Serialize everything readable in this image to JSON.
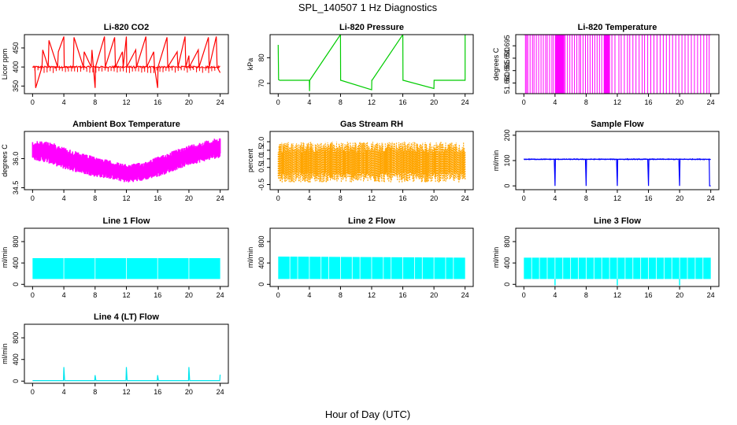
{
  "figure": {
    "title": "SPL_140507  1 Hz Diagnostics",
    "xlabel": "Hour of Day (UTC)"
  },
  "chart_data": [
    {
      "type": "line",
      "title": "Li-820 CO2",
      "xlabel": "",
      "ylabel": "Licor ppm",
      "color": "#ff0000",
      "xlim": [
        0,
        24
      ],
      "xticks": [
        0,
        4,
        8,
        12,
        16,
        20,
        24
      ],
      "ylim": [
        330,
        485
      ],
      "yticks": [
        350,
        400,
        450
      ],
      "ytick_labels": [
        "350",
        "400",
        "450"
      ],
      "series": [
        {
          "x": [
            0,
            0.3,
            0.4,
            1.2,
            1.3,
            2.0,
            2.1,
            3.2,
            3.3,
            4.0,
            4.05,
            5.2,
            5.3,
            6.5,
            6.6,
            7.5,
            7.6,
            8.0,
            8.05,
            9.2,
            9.3,
            10.5,
            10.6,
            11.5,
            11.6,
            12.0,
            12.05,
            13.2,
            13.3,
            14.5,
            14.6,
            15.5,
            15.6,
            16.0,
            16.05,
            17.2,
            17.3,
            18.5,
            18.6,
            19.5,
            19.6,
            20.0,
            20.05,
            21.2,
            21.3,
            22.5,
            22.6,
            23.5,
            23.6,
            24.0
          ],
          "y": [
            400,
            400,
            345,
            400,
            445,
            400,
            470,
            400,
            440,
            480,
            400,
            400,
            478,
            400,
            440,
            400,
            445,
            345,
            400,
            480,
            400,
            478,
            400,
            440,
            400,
            480,
            400,
            445,
            400,
            480,
            400,
            440,
            400,
            345,
            400,
            478,
            400,
            440,
            400,
            480,
            400,
            430,
            400,
            445,
            400,
            478,
            400,
            480,
            400,
            385
          ]
        }
      ]
    },
    {
      "type": "line",
      "title": "Li-820 Pressure",
      "xlabel": "",
      "ylabel": "kPa",
      "color": "#00cc00",
      "xlim": [
        0,
        24
      ],
      "xticks": [
        0,
        4,
        8,
        12,
        16,
        20,
        24
      ],
      "ylim": [
        66,
        89
      ],
      "yticks": [
        70,
        80
      ],
      "ytick_labels": [
        "70",
        "80"
      ],
      "series": [
        {
          "x": [
            0,
            0.05,
            0.2,
            4.0,
            4.02,
            4.05,
            8.0,
            8.02,
            8.05,
            12.0,
            12.02,
            12.05,
            16.0,
            16.02,
            16.05,
            20.0,
            20.02,
            20.05,
            24.0,
            24.0
          ],
          "y": [
            85,
            71.5,
            71.2,
            71.2,
            67,
            71.2,
            89,
            71.2,
            71.2,
            67.5,
            71.2,
            71.2,
            89,
            71.2,
            71.2,
            68,
            71.2,
            71.2,
            71.2,
            89
          ]
        }
      ]
    },
    {
      "type": "line",
      "title": "Li-820 Temperature",
      "xlabel": "",
      "ylabel": "degrees C",
      "color": "#ff00ff",
      "xlim": [
        0,
        24
      ],
      "xticks": [
        0,
        4,
        8,
        12,
        16,
        20,
        24
      ],
      "ylim": [
        51.6757,
        51.6995
      ],
      "yticks": [
        51.68,
        51.685,
        51.69,
        51.695
      ],
      "ytick_labels": [
        "51.680",
        "51.685",
        "51.690",
        "51.695"
      ],
      "series": [
        {
          "x": [
            0,
            24
          ],
          "y": [
            51.6995,
            51.6995
          ],
          "level_low": 51.6757,
          "flip_hours": [
            0.2,
            0.35,
            0.5,
            0.8,
            1.1,
            1.3,
            1.6,
            1.9,
            2.2,
            2.5,
            2.8,
            3.0,
            3.3,
            3.6,
            3.8,
            4.1,
            4.4,
            4.6,
            4.9,
            5.3,
            5.6,
            5.9,
            6.2,
            6.5,
            6.8,
            7.1,
            7.3,
            7.6,
            7.9,
            8.2,
            8.5,
            8.8,
            9.1,
            9.4,
            9.7,
            10.0,
            10.3,
            11.0,
            11.3,
            11.7,
            12.2,
            12.5,
            12.9,
            13.3,
            13.6,
            14.0,
            14.4,
            14.8,
            15.2,
            15.5,
            15.9,
            16.3,
            16.7,
            17.1,
            17.5,
            17.9,
            18.3,
            18.7,
            19.1,
            19.5,
            19.9,
            20.3,
            20.7,
            21.1,
            21.5,
            21.9,
            22.3,
            22.7,
            23.1,
            23.5,
            23.8
          ]
        }
      ]
    },
    {
      "type": "area",
      "title": "Ambient Box Temperature",
      "xlabel": "",
      "ylabel": "degrees C",
      "color": "#ff00ff",
      "xlim": [
        0,
        24
      ],
      "xticks": [
        0,
        4,
        8,
        12,
        16,
        20,
        24
      ],
      "ylim": [
        34.4,
        37.4
      ],
      "yticks": [
        34.5,
        36.0
      ],
      "ytick_labels": [
        "34.5",
        "36.0"
      ],
      "series": [
        {
          "name": "",
          "x": [
            0,
            2,
            4,
            6,
            8,
            10,
            12,
            14,
            16,
            18,
            20,
            22,
            24
          ],
          "y_upper": [
            36.9,
            36.9,
            36.6,
            36.3,
            36.1,
            35.9,
            35.7,
            35.8,
            36.1,
            36.4,
            36.7,
            36.9,
            37.1
          ],
          "y_lower": [
            35.9,
            35.7,
            35.4,
            35.2,
            35.0,
            34.9,
            34.7,
            34.8,
            35.0,
            35.3,
            35.6,
            35.8,
            36.0
          ]
        }
      ]
    },
    {
      "type": "area",
      "title": "Gas Stream RH",
      "xlabel": "",
      "ylabel": "percent",
      "color": "#ffa500",
      "xlim": [
        0,
        24
      ],
      "xticks": [
        0,
        4,
        8,
        12,
        16,
        20,
        24
      ],
      "ylim": [
        -0.8,
        2.6
      ],
      "yticks": [
        -0.5,
        0.5,
        1.0,
        1.5,
        2.0
      ],
      "ytick_labels": [
        "-0.5",
        "0.5",
        "1.0",
        "1.5",
        "2.0"
      ],
      "series": [
        {
          "name": "",
          "x": [
            0,
            24
          ],
          "y_upper": [
            2.0,
            2.0
          ],
          "y_lower": [
            -0.5,
            -0.5
          ]
        }
      ]
    },
    {
      "type": "line",
      "title": "Sample Flow",
      "xlabel": "",
      "ylabel": "ml/min",
      "color": "#0000ff",
      "xlim": [
        0,
        24
      ],
      "xticks": [
        0,
        4,
        8,
        12,
        16,
        20,
        24
      ],
      "ylim": [
        -15,
        215
      ],
      "yticks": [
        0,
        100,
        200
      ],
      "ytick_labels": [
        "0",
        "100",
        "200"
      ],
      "series": [
        {
          "x": [
            0,
            3.9,
            4.0,
            4.05,
            7.9,
            8.0,
            8.05,
            11.9,
            12.0,
            12.05,
            15.9,
            16.0,
            16.05,
            19.9,
            20.0,
            20.05,
            23.8,
            23.85,
            24.0
          ],
          "y": [
            105,
            105,
            0,
            105,
            105,
            0,
            105,
            105,
            0,
            105,
            105,
            0,
            105,
            105,
            0,
            105,
            105,
            0,
            0
          ]
        }
      ]
    },
    {
      "type": "area",
      "title": "Line 1 Flow",
      "xlabel": "",
      "ylabel": "ml/min",
      "color": "#00ffff",
      "xlim": [
        0,
        24
      ],
      "xticks": [
        0,
        4,
        8,
        12,
        16,
        20,
        24
      ],
      "ylim": [
        -40,
        1050
      ],
      "yticks": [
        0,
        400,
        800
      ],
      "ytick_labels": [
        "0",
        "400",
        "800"
      ],
      "series": [
        {
          "name": "",
          "x": [
            0,
            24
          ],
          "y_upper": [
            490,
            490
          ],
          "y_lower": [
            100,
            100
          ],
          "gaps_x": [
            4.0,
            8.0,
            12.0,
            16.0,
            20.0
          ]
        }
      ]
    },
    {
      "type": "area",
      "title": "Line 2 Flow",
      "xlabel": "",
      "ylabel": "ml/min",
      "color": "#00ffff",
      "xlim": [
        0,
        24
      ],
      "xticks": [
        0,
        4,
        8,
        12,
        16,
        20,
        24
      ],
      "ylim": [
        -40,
        1050
      ],
      "yticks": [
        0,
        400,
        800
      ],
      "ytick_labels": [
        "0",
        "400",
        "800"
      ],
      "series": [
        {
          "name": "",
          "x": [
            0,
            24
          ],
          "y_upper": [
            520,
            500
          ],
          "y_lower": [
            100,
            100
          ],
          "gaps_x": [
            1.5,
            2.5,
            4.0,
            5.5,
            6.5,
            8.0,
            9.5,
            10.5,
            12.0,
            13.5,
            14.5,
            16.0,
            17.5,
            18.5,
            20.0,
            21.5,
            22.5
          ]
        }
      ]
    },
    {
      "type": "area",
      "title": "Line 3 Flow",
      "xlabel": "",
      "ylabel": "ml/min",
      "color": "#00ffff",
      "xlim": [
        0,
        24
      ],
      "xticks": [
        0,
        4,
        8,
        12,
        16,
        20,
        24
      ],
      "ylim": [
        -40,
        1050
      ],
      "yticks": [
        0,
        400,
        800
      ],
      "ytick_labels": [
        "0",
        "400",
        "800"
      ],
      "series": [
        {
          "name": "",
          "x": [
            0,
            24
          ],
          "y_upper": [
            500,
            500
          ],
          "y_lower": [
            100,
            100
          ],
          "gaps_x": [
            1.0,
            2.0,
            3.0,
            4.0,
            5.0,
            6.0,
            7.0,
            8.0,
            9.0,
            10.0,
            11.0,
            12.0,
            13.0,
            14.0,
            15.0,
            16.0,
            17.0,
            18.0,
            19.0,
            20.0,
            21.0,
            22.0,
            23.0
          ],
          "dips_x": [
            4.0,
            12.0,
            20.0
          ]
        }
      ]
    },
    {
      "type": "line",
      "title": "Line 4 (LT) Flow",
      "xlabel": "",
      "ylabel": "ml/min",
      "color": "#00e5ee",
      "xlim": [
        0,
        24
      ],
      "xticks": [
        0,
        4,
        8,
        12,
        16,
        20,
        24
      ],
      "ylim": [
        -40,
        1050
      ],
      "yticks": [
        0,
        400,
        800
      ],
      "ytick_labels": [
        "0",
        "400",
        "800"
      ],
      "series": [
        {
          "x": [
            0,
            3.95,
            4.0,
            4.1,
            7.95,
            8.0,
            8.1,
            11.95,
            12.0,
            12.1,
            15.95,
            16.0,
            16.1,
            19.95,
            20.0,
            20.1,
            23.95,
            24.0
          ],
          "y": [
            10,
            10,
            260,
            10,
            10,
            110,
            10,
            10,
            260,
            10,
            10,
            110,
            10,
            10,
            260,
            10,
            10,
            120
          ]
        }
      ]
    }
  ]
}
